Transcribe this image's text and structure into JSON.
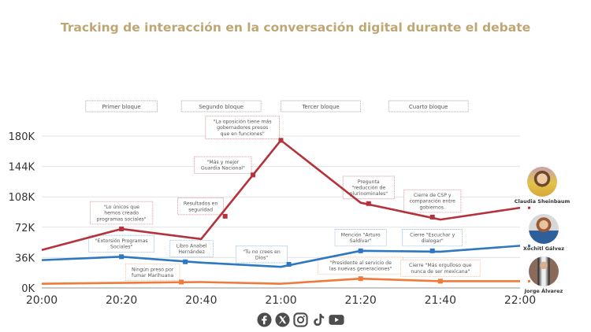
{
  "title": "Tracking de interacción en la conversación digital durante el debate",
  "blocks": [
    {
      "label": "Primer bloque",
      "start": "20:13",
      "end": "20:27"
    },
    {
      "label": "Segundo bloque",
      "start": "20:37",
      "end": "20:53"
    },
    {
      "label": "Tercer bloque",
      "start": "21:02",
      "end": "21:18"
    },
    {
      "label": "Cuarto bloque",
      "start": "21:29",
      "end": "21:45"
    }
  ],
  "candidates": [
    {
      "name": "Claudia Sheinbaum",
      "series": "Claudia Sheinbaum"
    },
    {
      "name": "Xóchitl Gálvez",
      "series": "Xóchitl Gálvez"
    },
    {
      "name": "Jorge Álvarez",
      "series": "Jorge Álvarez"
    }
  ],
  "social_icons": [
    "facebook-icon",
    "x-icon",
    "instagram-icon",
    "tiktok-icon",
    "youtube-icon"
  ],
  "chart_data": {
    "type": "line",
    "title": "Tracking de interacción en la conversación digital durante el debate",
    "xlabel": "",
    "ylabel": "",
    "x_ticks": [
      "20:00",
      "20:20",
      "20:40",
      "21:00",
      "21:20",
      "21:40",
      "22:00"
    ],
    "y_ticks": [
      "0K",
      "36K",
      "72K",
      "108K",
      "144K",
      "180K"
    ],
    "xlim_minutes": [
      0,
      120
    ],
    "ylim": [
      0,
      180000
    ],
    "grid": true,
    "series": [
      {
        "name": "Claudia Sheinbaum",
        "color": "#b5323b",
        "points": [
          [
            0,
            45000
          ],
          [
            20,
            70000
          ],
          [
            40,
            58000
          ],
          [
            60,
            175000
          ],
          [
            80,
            101000
          ],
          [
            100,
            81000
          ],
          [
            120,
            95000
          ]
        ]
      },
      {
        "name": "Xóchitl Gálvez",
        "color": "#2f77c0",
        "points": [
          [
            0,
            33000
          ],
          [
            20,
            37000
          ],
          [
            40,
            30000
          ],
          [
            60,
            25000
          ],
          [
            80,
            44000
          ],
          [
            100,
            43000
          ],
          [
            120,
            50000
          ]
        ]
      },
      {
        "name": "Jorge Álvarez",
        "color": "#ee7a3b",
        "points": [
          [
            0,
            5000
          ],
          [
            20,
            6000
          ],
          [
            40,
            7000
          ],
          [
            60,
            5000
          ],
          [
            80,
            11000
          ],
          [
            100,
            8000
          ],
          [
            120,
            8000
          ]
        ]
      }
    ],
    "annotations": [
      {
        "series": 0,
        "at": 20,
        "value": 70000,
        "text": [
          "\"Lo únicos que",
          "hemos creado",
          "programas sociales\""
        ],
        "box": "above"
      },
      {
        "series": 0,
        "at": 46,
        "value": 85000,
        "text": [
          "Resultados en",
          "seguridad"
        ],
        "box": "upper-left"
      },
      {
        "series": 0,
        "at": 53,
        "value": 134000,
        "text": [
          "\"Más y mejor",
          "Guardia Nacional\""
        ],
        "box": "upper-left"
      },
      {
        "series": 0,
        "at": 60,
        "value": 175000,
        "text": [
          "\"La oposición tiene más",
          "gobernadores presos",
          "que en funciones\""
        ],
        "box": "upper-left"
      },
      {
        "series": 0,
        "at": 82,
        "value": 100000,
        "text": [
          "Pregunta",
          "\"reducción de",
          "plurinominales\""
        ],
        "box": "above"
      },
      {
        "series": 0,
        "at": 98,
        "value": 84000,
        "text": [
          "Cierre de CSP  y",
          "comparación entre",
          "gobiernos."
        ],
        "box": "above"
      },
      {
        "series": 1,
        "at": 20,
        "value": 37000,
        "text": [
          "\"Extorsión Programas",
          "Sociales\""
        ],
        "box": "above"
      },
      {
        "series": 1,
        "at": 36,
        "value": 31000,
        "text": [
          "Libro Anabel",
          "Hernández"
        ],
        "box": "upper-right"
      },
      {
        "series": 1,
        "at": 62,
        "value": 28000,
        "text": [
          "\"Tu no crees en",
          "Dios\""
        ],
        "box": "upper-left"
      },
      {
        "series": 1,
        "at": 80,
        "value": 44000,
        "text": [
          "Mención \"Arturo",
          "Saldívar\""
        ],
        "box": "above"
      },
      {
        "series": 1,
        "at": 98,
        "value": 44000,
        "text": [
          "Cierre \"Escuchar y",
          "dialogar\""
        ],
        "box": "above"
      },
      {
        "series": 2,
        "at": 35,
        "value": 7000,
        "text": [
          "Ningún preso por",
          "fumar Marihuana"
        ],
        "box": "upper-left"
      },
      {
        "series": 2,
        "at": 80,
        "value": 11000,
        "text": [
          "\"Presidente  al servicio de",
          "las nuevas generaciones\""
        ],
        "box": "above"
      },
      {
        "series": 2,
        "at": 100,
        "value": 8000,
        "text": [
          "Cierre \"Más orgulloso que",
          "nunca de ser mexicana\""
        ],
        "box": "above"
      }
    ]
  }
}
